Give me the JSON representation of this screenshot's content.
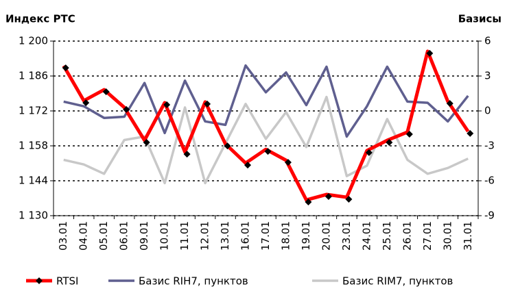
{
  "chart_data": {
    "type": "line",
    "y_label": "Индекс РТС",
    "y2_label": "Базисы",
    "categories": [
      "03.01",
      "04.01",
      "05.01",
      "06.01",
      "09.01",
      "10.01",
      "11.01",
      "12.01",
      "13.01",
      "16.01",
      "17.01",
      "18.01",
      "19.01",
      "20.01",
      "23.01",
      "24.01",
      "25.01",
      "26.01",
      "27.01",
      "30.01",
      "31.01"
    ],
    "series": [
      {
        "name": "RTSI",
        "color": "#ff0000",
        "values": [
          1190.1,
          1176.1,
          1180.5,
          1173.4,
          1160.2,
          1175.3,
          1155.5,
          1175.6,
          1158.8,
          1151.1,
          1156.6,
          1152.2,
          1136.3,
          1138.5,
          1137.4,
          1156.1,
          1160.2,
          1163.5,
          1195.9,
          1175.8,
          1163.8
        ]
      },
      {
        "name": "Базис RIH7, пунктов",
        "color": "#5f5f8f",
        "axis": "y2",
        "values": [
          0.8,
          0.4,
          -0.6,
          -0.5,
          2.4,
          -1.9,
          2.6,
          -0.9,
          -1.2,
          3.9,
          1.6,
          3.3,
          0.5,
          3.8,
          -2.2,
          0.4,
          3.8,
          0.8,
          0.7,
          -0.9,
          1.3
        ]
      },
      {
        "name": "Базис RIM7, пунктов",
        "color": "#c8c8c8",
        "axis": "y2",
        "values": [
          -4.2,
          -4.6,
          -5.4,
          -2.5,
          -2.2,
          -6.2,
          0.3,
          -6.2,
          -2.8,
          0.6,
          -2.4,
          -0.1,
          -3.1,
          1.2,
          -5.6,
          -4.7,
          -0.7,
          -4.2,
          -5.4,
          -4.9,
          -4.1
        ]
      }
    ],
    "ylim": [
      1130,
      1200
    ],
    "yticks": [
      {
        "value": 1130,
        "label": "1 130"
      },
      {
        "value": 1144,
        "label": "1 144"
      },
      {
        "value": 1158,
        "label": "1 158"
      },
      {
        "value": 1172,
        "label": "1 172"
      },
      {
        "value": 1186,
        "label": "1 186"
      },
      {
        "value": 1200,
        "label": "1 200"
      }
    ],
    "y2lim": [
      -9,
      6
    ],
    "y2ticks": [
      -9,
      -6,
      -3,
      0,
      3,
      6
    ],
    "grid": true,
    "legend": "bottom"
  }
}
